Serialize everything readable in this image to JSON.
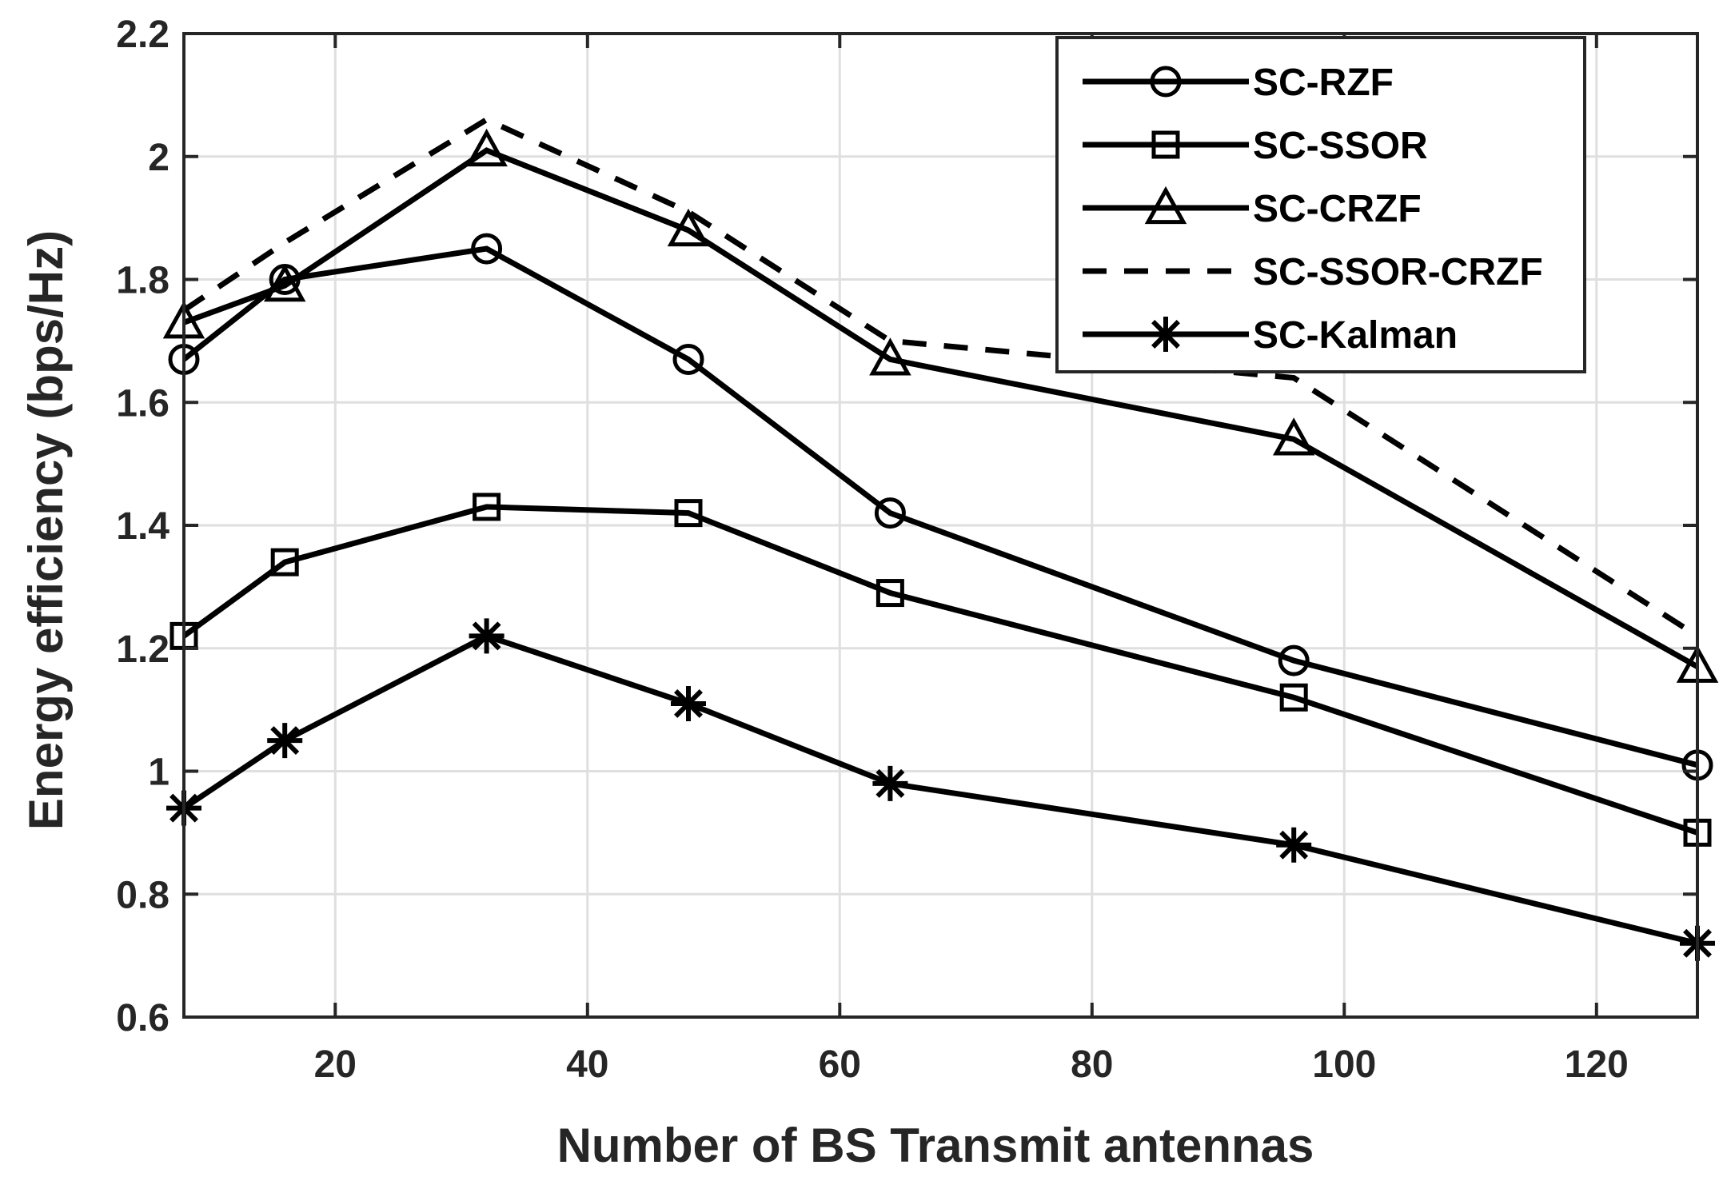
{
  "chart_data": {
    "type": "line",
    "title": "",
    "xlabel": "Number of BS Transmit antennas",
    "ylabel": "Energy efficiency (bps/Hz)",
    "xlim": [
      8,
      128
    ],
    "ylim": [
      0.6,
      2.2
    ],
    "xticks": [
      20,
      40,
      60,
      80,
      100,
      120
    ],
    "yticks": [
      0.6,
      0.8,
      1,
      1.2,
      1.4,
      1.6,
      1.8,
      2,
      2.2
    ],
    "xtick_labels": [
      "20",
      "40",
      "60",
      "80",
      "100",
      "120"
    ],
    "ytick_labels": [
      "0.6",
      "0.8",
      "1",
      "1.2",
      "1.4",
      "1.6",
      "1.8",
      "2",
      "2.2"
    ],
    "grid": true,
    "legend_position": "top-right",
    "x": [
      8,
      16,
      32,
      48,
      64,
      96,
      128
    ],
    "series": [
      {
        "name": "SC-RZF",
        "marker": "circle",
        "dash": "solid",
        "values": [
          1.67,
          1.8,
          1.85,
          1.67,
          1.42,
          1.18,
          1.01
        ]
      },
      {
        "name": "SC-SSOR",
        "marker": "square",
        "dash": "solid",
        "values": [
          1.22,
          1.34,
          1.43,
          1.42,
          1.29,
          1.12,
          0.9
        ]
      },
      {
        "name": "SC-CRZF",
        "marker": "triangle",
        "dash": "solid",
        "values": [
          1.73,
          1.79,
          2.01,
          1.88,
          1.67,
          1.54,
          1.17
        ]
      },
      {
        "name": "SC-SSOR-CRZF",
        "marker": "none",
        "dash": "dashed",
        "values": [
          1.75,
          1.86,
          2.06,
          1.91,
          1.7,
          1.64,
          1.22
        ]
      },
      {
        "name": "SC-Kalman",
        "marker": "star",
        "dash": "solid",
        "values": [
          0.94,
          1.05,
          1.22,
          1.11,
          0.98,
          0.88,
          0.72
        ]
      }
    ]
  },
  "colors": {
    "line": "#000000",
    "grid": "#dfdfdf",
    "axis": "#262626",
    "background": "#ffffff"
  }
}
